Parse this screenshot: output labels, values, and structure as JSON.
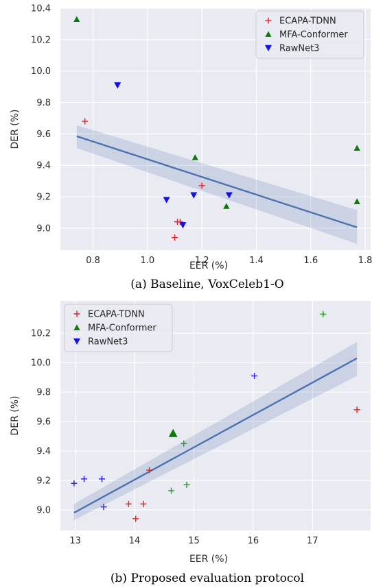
{
  "chart_data": [
    {
      "type": "scatter",
      "caption": "(a) Baseline, VoxCeleb1-O",
      "xlabel": "EER (%)",
      "ylabel": "DER (%)",
      "xlim": [
        0.68,
        1.82
      ],
      "ylim": [
        8.86,
        10.4
      ],
      "xticks": [
        0.8,
        1.0,
        1.2,
        1.4,
        1.6,
        1.8
      ],
      "xtick_labels": [
        "0.8",
        "1.0",
        "1.2",
        "1.4",
        "1.6",
        "1.8"
      ],
      "yticks": [
        9.0,
        9.2,
        9.4,
        9.6,
        9.8,
        10.0,
        10.2,
        10.4
      ],
      "ytick_labels": [
        "9.0",
        "9.2",
        "9.4",
        "9.6",
        "9.8",
        "10.0",
        "10.2",
        "10.4"
      ],
      "grid": true,
      "legend": "top-right",
      "series": [
        {
          "name": "ECAPA-TDNN",
          "marker": "plus",
          "color": "#e8262b",
          "points": [
            [
              0.77,
              9.68
            ],
            [
              1.11,
              9.04
            ],
            [
              1.12,
              9.04
            ],
            [
              1.1,
              8.94
            ],
            [
              1.2,
              9.27
            ]
          ]
        },
        {
          "name": "MFA-Conformer",
          "marker": "triangle-up",
          "color": "#0c7a0c",
          "points": [
            [
              0.74,
              10.33
            ],
            [
              1.175,
              9.45
            ],
            [
              1.29,
              9.14
            ],
            [
              1.77,
              9.51
            ],
            [
              1.77,
              9.17
            ]
          ]
        },
        {
          "name": "RawNet3",
          "marker": "triangle-down",
          "color": "#1010ee",
          "points": [
            [
              0.89,
              9.91
            ],
            [
              1.07,
              9.18
            ],
            [
              1.13,
              9.02
            ],
            [
              1.17,
              9.21
            ],
            [
              1.3,
              9.21
            ]
          ]
        }
      ],
      "fit": {
        "color": "#4c72b0",
        "x": [
          0.74,
          1.77
        ],
        "y": [
          9.585,
          9.005
        ],
        "band_lower": [
          9.51,
          8.9
        ],
        "band_upper": [
          9.655,
          9.115
        ]
      }
    },
    {
      "type": "scatter",
      "caption": "(b) Proposed evaluation protocol",
      "xlabel": "EER (%)",
      "ylabel": "DER (%)",
      "xlim": [
        12.75,
        17.98
      ],
      "ylim": [
        8.86,
        10.42
      ],
      "xticks": [
        13,
        14,
        15,
        16,
        17
      ],
      "xtick_labels": [
        "13",
        "14",
        "15",
        "16",
        "17"
      ],
      "yticks": [
        9.0,
        9.2,
        9.4,
        9.6,
        9.8,
        10.0,
        10.2
      ],
      "ytick_labels": [
        "9.0",
        "9.2",
        "9.4",
        "9.6",
        "9.8",
        "10.0",
        "10.2"
      ],
      "grid": true,
      "legend": "top-left",
      "legend_entries": [
        {
          "name": "ECAPA-TDNN",
          "marker": "plus",
          "color": "#e8262b"
        },
        {
          "name": "MFA-Conformer",
          "marker": "triangle-up",
          "color": "#0c7a0c"
        },
        {
          "name": "RawNet3",
          "marker": "triangle-down",
          "color": "#1010ee"
        }
      ],
      "series": [
        {
          "name": "ECAPA-TDNN",
          "marker": "plus",
          "color": "#e8262b",
          "points": [
            [
              17.75,
              9.68
            ],
            [
              13.9,
              9.04
            ],
            [
              14.15,
              9.04
            ],
            [
              14.02,
              8.94
            ],
            [
              14.25,
              9.27
            ]
          ]
        },
        {
          "name": "MFA-Conformer",
          "marker": "plus",
          "color": "#2a9d2a",
          "points": [
            [
              17.18,
              10.33
            ],
            [
              14.83,
              9.45
            ],
            [
              14.62,
              9.13
            ],
            [
              14.88,
              9.17
            ]
          ]
        },
        {
          "name": "MFA-Conformer",
          "marker": "triangle-up-large",
          "color": "#0c7a0c",
          "points": [
            [
              14.65,
              9.52
            ]
          ]
        },
        {
          "name": "RawNet3",
          "marker": "plus",
          "color": "#2a2ae8",
          "points": [
            [
              16.02,
              9.91
            ],
            [
              12.98,
              9.18
            ],
            [
              13.15,
              9.21
            ],
            [
              13.45,
              9.21
            ],
            [
              13.48,
              9.02
            ]
          ]
        }
      ],
      "fit": {
        "color": "#4c72b0",
        "x": [
          12.98,
          17.75
        ],
        "y": [
          8.98,
          10.03
        ],
        "band_lower": [
          8.93,
          9.91
        ],
        "band_upper": [
          9.04,
          10.14
        ]
      }
    }
  ]
}
